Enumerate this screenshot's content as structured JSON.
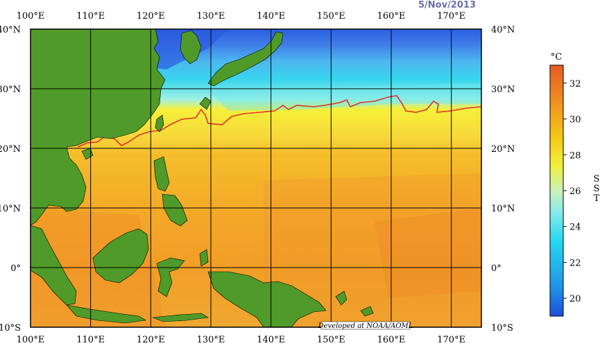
{
  "date": "5/Nov/2013",
  "credit": "Developed at NOAA/AOML",
  "map": {
    "lon_ticks": [
      "100°E",
      "110°E",
      "120°E",
      "130°E",
      "140°E",
      "150°E",
      "160°E",
      "170°E"
    ],
    "lat_ticks_left": [
      "40°N",
      "30°N",
      "20°N",
      "10°N",
      "0°",
      "10°S"
    ],
    "lat_ticks_right": [
      "40°N",
      "30°N",
      "20°N",
      "10°N",
      "0°",
      "10°S"
    ],
    "lon_range": [
      100,
      175
    ],
    "lat_range": [
      -10,
      40
    ],
    "land_color": "#4f9a28",
    "isotherm_color": "#e0302c"
  },
  "colorbar": {
    "unit": "°C",
    "title": "SST",
    "ticks": [
      "32",
      "30",
      "28",
      "26",
      "24",
      "22",
      "20"
    ],
    "range": [
      19,
      33
    ],
    "colors": [
      "#1f4fd8",
      "#1f8ce6",
      "#22b4ec",
      "#25d8f0",
      "#7de8ee",
      "#c9f1b8",
      "#f2ef3a",
      "#f5cc1a",
      "#f3a51b",
      "#ee7f21",
      "#e85a22"
    ]
  }
}
